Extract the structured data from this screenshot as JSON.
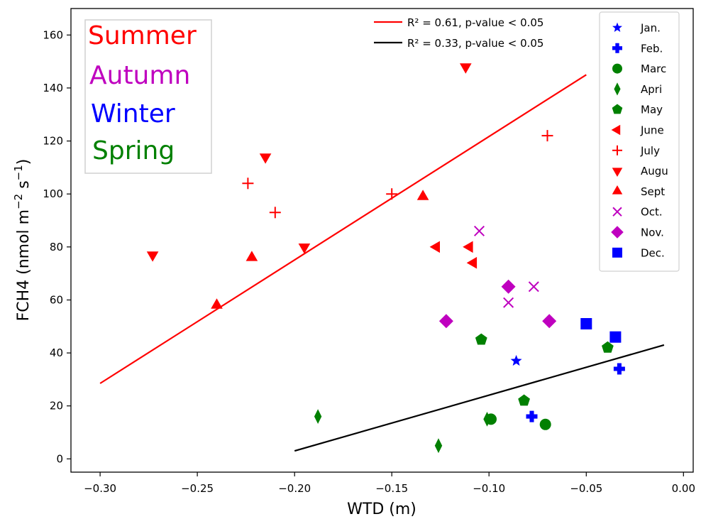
{
  "chart_data": {
    "type": "scatter",
    "xlabel": "WTD (m)",
    "ylabel_main": "FCH4 (nmol m",
    "ylabel_sup1": "−2",
    "ylabel_mid": " s",
    "ylabel_sup2": "−1",
    "ylabel_end": ")",
    "xlim": [
      -0.315,
      0.005
    ],
    "ylim": [
      -5,
      170
    ],
    "xticks": [
      -0.3,
      -0.25,
      -0.2,
      -0.15,
      -0.1,
      -0.05,
      0.0
    ],
    "xtick_labels": [
      "−0.30",
      "−0.25",
      "−0.20",
      "−0.15",
      "−0.10",
      "−0.05",
      "0.00"
    ],
    "yticks": [
      0,
      20,
      40,
      60,
      80,
      100,
      120,
      140,
      160
    ],
    "ytick_labels": [
      "0",
      "20",
      "40",
      "60",
      "80",
      "100",
      "120",
      "140",
      "160"
    ],
    "grid": false,
    "series": [
      {
        "name": "Jan.",
        "marker": "star",
        "color": "#0000ff",
        "points": [
          [
            -0.086,
            37
          ]
        ]
      },
      {
        "name": "Feb.",
        "marker": "plus-bold",
        "color": "#0000ff",
        "points": [
          [
            -0.078,
            16
          ],
          [
            -0.033,
            34
          ]
        ]
      },
      {
        "name": "Marc",
        "marker": "circle",
        "color": "#008000",
        "points": [
          [
            -0.099,
            15
          ],
          [
            -0.071,
            13
          ]
        ]
      },
      {
        "name": "Apri",
        "marker": "thin-diamond",
        "color": "#008000",
        "points": [
          [
            -0.188,
            16
          ],
          [
            -0.126,
            5
          ],
          [
            -0.101,
            15
          ]
        ]
      },
      {
        "name": "May",
        "marker": "pentagon",
        "color": "#008000",
        "points": [
          [
            -0.104,
            45
          ],
          [
            -0.082,
            22
          ],
          [
            -0.039,
            42
          ]
        ]
      },
      {
        "name": "June",
        "marker": "triangle-left",
        "color": "#ff0000",
        "points": [
          [
            -0.127,
            80
          ],
          [
            -0.11,
            80
          ],
          [
            -0.108,
            74
          ]
        ]
      },
      {
        "name": "July",
        "marker": "plus",
        "color": "#ff0000",
        "points": [
          [
            -0.224,
            104
          ],
          [
            -0.21,
            93
          ],
          [
            -0.15,
            100
          ],
          [
            -0.07,
            122
          ]
        ]
      },
      {
        "name": "Augu",
        "marker": "triangle-down",
        "color": "#ff0000",
        "points": [
          [
            -0.273,
            77
          ],
          [
            -0.215,
            114
          ],
          [
            -0.195,
            80
          ],
          [
            -0.112,
            148
          ]
        ]
      },
      {
        "name": "Sept",
        "marker": "triangle-up",
        "color": "#ff0000",
        "points": [
          [
            -0.24,
            58
          ],
          [
            -0.222,
            76
          ],
          [
            -0.134,
            99
          ]
        ]
      },
      {
        "name": "Oct.",
        "marker": "x",
        "color": "#bf00bf",
        "points": [
          [
            -0.105,
            86
          ],
          [
            -0.09,
            59
          ],
          [
            -0.077,
            65
          ]
        ]
      },
      {
        "name": "Nov.",
        "marker": "diamond",
        "color": "#bf00bf",
        "points": [
          [
            -0.122,
            52
          ],
          [
            -0.09,
            65
          ],
          [
            -0.069,
            52
          ]
        ]
      },
      {
        "name": "Dec.",
        "marker": "square",
        "color": "#0000ff",
        "points": [
          [
            -0.05,
            51
          ],
          [
            -0.035,
            46
          ]
        ]
      }
    ],
    "fit_lines": [
      {
        "label": "R² = 0.61, p-value < 0.05",
        "color": "#ff0000",
        "x": [
          -0.3,
          -0.05
        ],
        "y": [
          28.5,
          145
        ]
      },
      {
        "label": "R² = 0.33, p-value < 0.05",
        "color": "#000000",
        "x": [
          -0.2,
          -0.01
        ],
        "y": [
          3,
          43
        ]
      }
    ],
    "season_labels": [
      {
        "text": "Summer",
        "color": "#ff0000"
      },
      {
        "text": "Autumn",
        "color": "#bf00bf"
      },
      {
        "text": "Winter",
        "color": "#0000ff"
      },
      {
        "text": "Spring",
        "color": "#008000"
      }
    ],
    "legend_placement": "right"
  }
}
